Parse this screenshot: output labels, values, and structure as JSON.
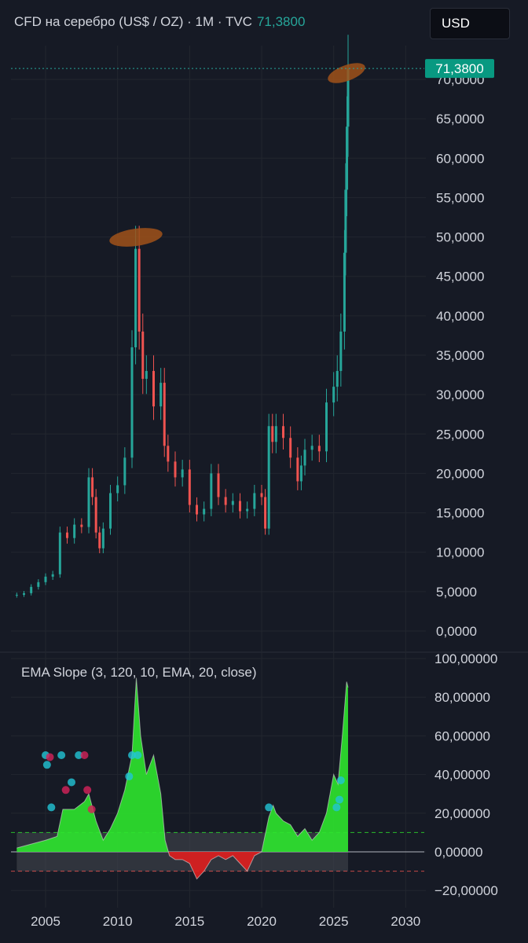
{
  "header": {
    "title": "CFD на серебро (US$ / OZ) · 1M · TVC",
    "price": "71,3800"
  },
  "currency_button": {
    "label": "USD"
  },
  "colors": {
    "background": "#161a25",
    "up": "#26a69a",
    "down": "#ef5350",
    "price_label": "#089981",
    "slope_positive": "#2ee62e",
    "slope_negative": "#e01e1e",
    "highlight": "#a0521a"
  },
  "chart_data": [
    {
      "type": "candlestick",
      "title": "CFD на серебро (US$ / OZ) · 1M · TVC",
      "last_price_label": "71,3800",
      "x_ticks": [
        "2005",
        "2010",
        "2015",
        "2020",
        "2025",
        "2030"
      ],
      "y_ticks": [
        "0,0000",
        "5,0000",
        "10,0000",
        "15,0000",
        "20,0000",
        "25,0000",
        "30,0000",
        "35,0000",
        "40,0000",
        "45,0000",
        "50,0000",
        "55,0000",
        "60,0000",
        "65,0000",
        "70,0000"
      ],
      "ylim": [
        0,
        72
      ],
      "xlim": [
        2002.6,
        2031.4
      ],
      "grid": true,
      "x": [
        2003.0,
        2003.5,
        2004.0,
        2004.5,
        2005.0,
        2005.5,
        2006.0,
        2006.5,
        2007.0,
        2007.5,
        2008.0,
        2008.25,
        2008.5,
        2008.75,
        2009.0,
        2009.5,
        2010.0,
        2010.5,
        2011.0,
        2011.25,
        2011.5,
        2011.75,
        2012.0,
        2012.5,
        2013.0,
        2013.25,
        2013.5,
        2014.0,
        2014.5,
        2015.0,
        2015.5,
        2016.0,
        2016.5,
        2017.0,
        2017.5,
        2018.0,
        2018.5,
        2019.0,
        2019.5,
        2020.0,
        2020.25,
        2020.5,
        2020.75,
        2021.0,
        2021.5,
        2022.0,
        2022.5,
        2022.75,
        2023.0,
        2023.5,
        2024.0,
        2024.5,
        2025.0,
        2025.25,
        2025.5,
        2025.75,
        2025.83,
        2025.92,
        2026.0
      ],
      "close": [
        4.6,
        4.8,
        5.6,
        6.2,
        6.9,
        7.2,
        12.5,
        11.8,
        13.5,
        13.2,
        19.5,
        17.0,
        12.5,
        10.5,
        13.0,
        17.5,
        18.5,
        22.0,
        36.0,
        48.5,
        38.0,
        32.0,
        33.0,
        28.5,
        31.5,
        23.5,
        21.5,
        19.5,
        20.5,
        16.0,
        14.8,
        15.5,
        20.0,
        17.0,
        16.0,
        16.5,
        15.2,
        15.5,
        17.5,
        17.0,
        13.0,
        26.0,
        24.0,
        26.0,
        24.5,
        22.0,
        19.0,
        21.0,
        23.0,
        23.5,
        22.8,
        29.0,
        31.0,
        33.0,
        38.0,
        48.0,
        56.0,
        64.0,
        71.38
      ],
      "ema_slope_panel": {
        "title": "EMA Slope (3, 120, 10, EMA, 20, close)",
        "y_ticks": [
          "−20,00000",
          "0,00000",
          "20,00000",
          "40,00000",
          "60,00000",
          "80,00000",
          "100,00000"
        ],
        "ylim": [
          -27,
          104
        ],
        "x": [
          2003.0,
          2004.0,
          2005.0,
          2005.8,
          2006.2,
          2007.0,
          2007.7,
          2008.0,
          2008.5,
          2009.0,
          2009.5,
          2010.0,
          2010.5,
          2011.0,
          2011.3,
          2011.6,
          2012.0,
          2012.5,
          2013.0,
          2013.3,
          2013.6,
          2014.0,
          2014.5,
          2015.0,
          2015.5,
          2016.0,
          2016.5,
          2017.0,
          2017.5,
          2018.0,
          2018.5,
          2019.0,
          2019.5,
          2020.0,
          2020.5,
          2020.8,
          2021.0,
          2021.5,
          2022.0,
          2022.5,
          2023.0,
          2023.5,
          2024.0,
          2024.5,
          2025.0,
          2025.3,
          2025.6,
          2025.9,
          2026.0
        ],
        "values": [
          2,
          4,
          6,
          8,
          22,
          22,
          26,
          30,
          16,
          6,
          12,
          20,
          32,
          50,
          90,
          60,
          40,
          50,
          30,
          6,
          -2,
          -4,
          -4,
          -6,
          -14,
          -10,
          -4,
          -2,
          -4,
          -2,
          -6,
          -10,
          -2,
          0,
          18,
          24,
          20,
          16,
          14,
          8,
          12,
          6,
          10,
          20,
          40,
          35,
          60,
          88,
          85
        ],
        "zero_line": 0,
        "upper_band": 10,
        "lower_band": -10
      }
    }
  ]
}
